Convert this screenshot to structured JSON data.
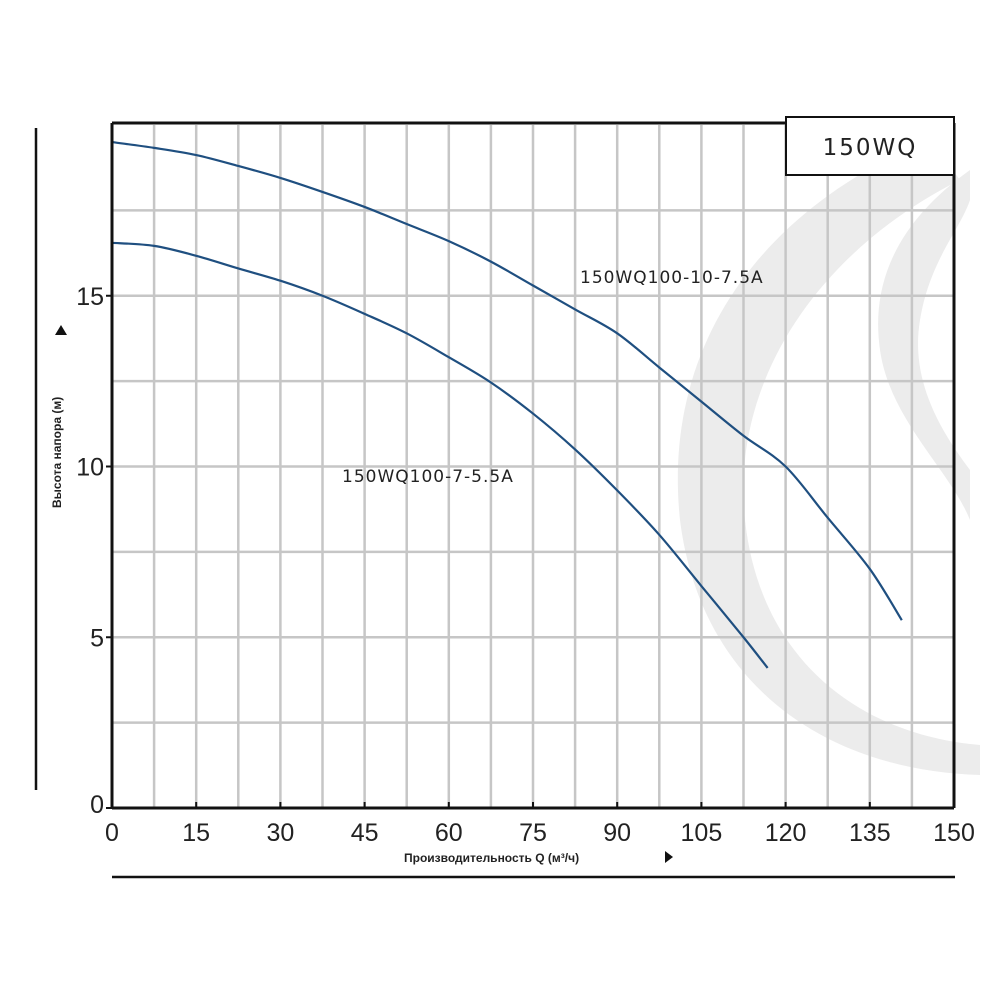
{
  "chart_data": {
    "type": "line",
    "title": "150WQ",
    "xlabel": "Производительность Q (м³/ч)",
    "ylabel": "Высота напора (м)",
    "xlim": [
      0,
      150
    ],
    "ylim": [
      0,
      20
    ],
    "x_ticks": [
      0,
      15,
      30,
      45,
      60,
      75,
      90,
      105,
      120,
      135,
      150
    ],
    "y_ticks": [
      0,
      5,
      10,
      15
    ],
    "x_grid_step": 7.5,
    "y_grid_step": 2.5,
    "grid": true,
    "colors": {
      "curve": "#1f4f80",
      "grid": "#c6c6c6",
      "axis": "#111111",
      "watermark": "#ececec"
    },
    "series": [
      {
        "name": "150WQ100-10-7.5A",
        "x": [
          0,
          7.5,
          15,
          22.5,
          30,
          37.5,
          45,
          52.5,
          60,
          67.5,
          75,
          82.5,
          90,
          97.5,
          105,
          112.5,
          120,
          127.5,
          135,
          140.7
        ],
        "y": [
          19.5,
          19.33,
          19.12,
          18.8,
          18.45,
          18.04,
          17.6,
          17.1,
          16.6,
          16.0,
          15.3,
          14.6,
          13.9,
          12.9,
          11.9,
          10.9,
          10.0,
          8.5,
          7.0,
          5.5
        ]
      },
      {
        "name": "150WQ100-7-5.5A",
        "x": [
          0,
          7.5,
          15,
          22.5,
          30,
          37.5,
          45,
          52.5,
          60,
          67.5,
          75,
          82.5,
          90,
          97.5,
          105,
          112.5,
          116.8
        ],
        "y": [
          16.55,
          16.46,
          16.17,
          15.8,
          15.44,
          15.0,
          14.47,
          13.9,
          13.2,
          12.46,
          11.55,
          10.5,
          9.3,
          8.0,
          6.5,
          5.0,
          4.1
        ]
      }
    ]
  }
}
